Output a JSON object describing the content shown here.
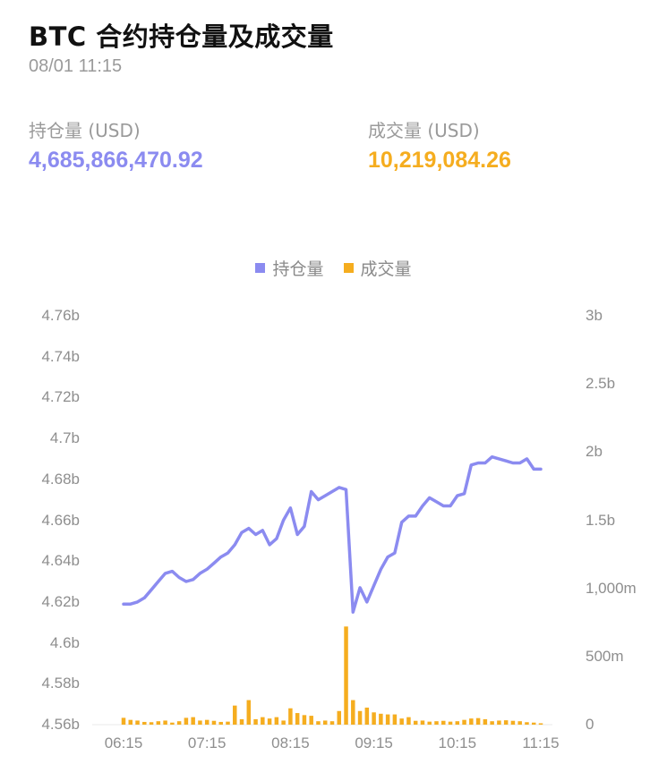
{
  "header": {
    "title": "BTC 合约持仓量及成交量",
    "timestamp": "08/01 11:15"
  },
  "stats": {
    "open_interest": {
      "label": "持仓量 (USD)",
      "value": "4,685,866,470.92",
      "color": "#8b8bf0"
    },
    "volume": {
      "label": "成交量 (USD)",
      "value": "10,219,084.26",
      "color": "#f5ad1f"
    }
  },
  "legend": [
    {
      "label": "持仓量",
      "color": "#8b8bf0"
    },
    {
      "label": "成交量",
      "color": "#f5ad1f"
    }
  ],
  "chart_data": {
    "type": "line+bar",
    "title": "BTC 合约持仓量及成交量",
    "x_tick_labels": [
      "06:15",
      "07:15",
      "08:15",
      "09:15",
      "10:15",
      "11:15"
    ],
    "left_axis": {
      "ticks": [
        "4.76b",
        "4.74b",
        "4.72b",
        "4.7b",
        "4.68b",
        "4.66b",
        "4.64b",
        "4.62b",
        "4.6b",
        "4.58b",
        "4.56b"
      ],
      "range": [
        4.56,
        4.76
      ],
      "unit": "b"
    },
    "right_axis": {
      "ticks": [
        "3b",
        "2.5b",
        "2b",
        "1.5b",
        "1,000m",
        "500m",
        "0"
      ],
      "range": [
        0,
        3000
      ],
      "unit": "m"
    },
    "grid": "baseline only",
    "legend_position": "top",
    "x": [
      "06:15",
      "06:20",
      "06:25",
      "06:30",
      "06:35",
      "06:40",
      "06:45",
      "06:50",
      "06:55",
      "07:00",
      "07:05",
      "07:10",
      "07:15",
      "07:20",
      "07:25",
      "07:30",
      "07:35",
      "07:40",
      "07:45",
      "07:50",
      "07:55",
      "08:00",
      "08:05",
      "08:10",
      "08:15",
      "08:20",
      "08:25",
      "08:30",
      "08:35",
      "08:40",
      "08:45",
      "08:50",
      "08:55",
      "09:00",
      "09:05",
      "09:10",
      "09:15",
      "09:20",
      "09:25",
      "09:30",
      "09:35",
      "09:40",
      "09:45",
      "09:50",
      "09:55",
      "10:00",
      "10:05",
      "10:10",
      "10:15",
      "10:20",
      "10:25",
      "10:30",
      "10:35",
      "10:40",
      "10:45",
      "10:50",
      "10:55",
      "11:00",
      "11:05",
      "11:10",
      "11:15"
    ],
    "series": [
      {
        "name": "持仓量",
        "type": "line",
        "axis": "left",
        "unit": "b",
        "color": "#8b8bf0",
        "values": [
          4.619,
          4.619,
          4.62,
          4.622,
          4.626,
          4.63,
          4.634,
          4.635,
          4.632,
          4.63,
          4.631,
          4.634,
          4.636,
          4.639,
          4.642,
          4.644,
          4.648,
          4.654,
          4.656,
          4.653,
          4.655,
          4.648,
          4.651,
          4.66,
          4.666,
          4.653,
          4.657,
          4.674,
          4.67,
          4.672,
          4.674,
          4.676,
          4.675,
          4.615,
          4.627,
          4.62,
          4.628,
          4.636,
          4.642,
          4.644,
          4.659,
          4.662,
          4.662,
          4.667,
          4.671,
          4.669,
          4.667,
          4.667,
          4.672,
          4.673,
          4.687,
          4.688,
          4.688,
          4.691,
          4.69,
          4.689,
          4.688,
          4.688,
          4.69,
          4.685,
          4.685
        ]
      },
      {
        "name": "成交量",
        "type": "bar",
        "axis": "right",
        "unit": "m",
        "color": "#f5ad1f",
        "values": [
          50,
          35,
          30,
          20,
          18,
          25,
          30,
          15,
          25,
          50,
          55,
          30,
          35,
          28,
          20,
          22,
          140,
          40,
          180,
          40,
          55,
          45,
          55,
          30,
          120,
          85,
          70,
          65,
          25,
          30,
          25,
          100,
          720,
          180,
          100,
          125,
          90,
          80,
          75,
          75,
          45,
          55,
          28,
          30,
          22,
          25,
          28,
          22,
          25,
          35,
          45,
          48,
          40,
          25,
          30,
          32,
          28,
          25,
          18,
          15,
          10
        ]
      }
    ]
  }
}
